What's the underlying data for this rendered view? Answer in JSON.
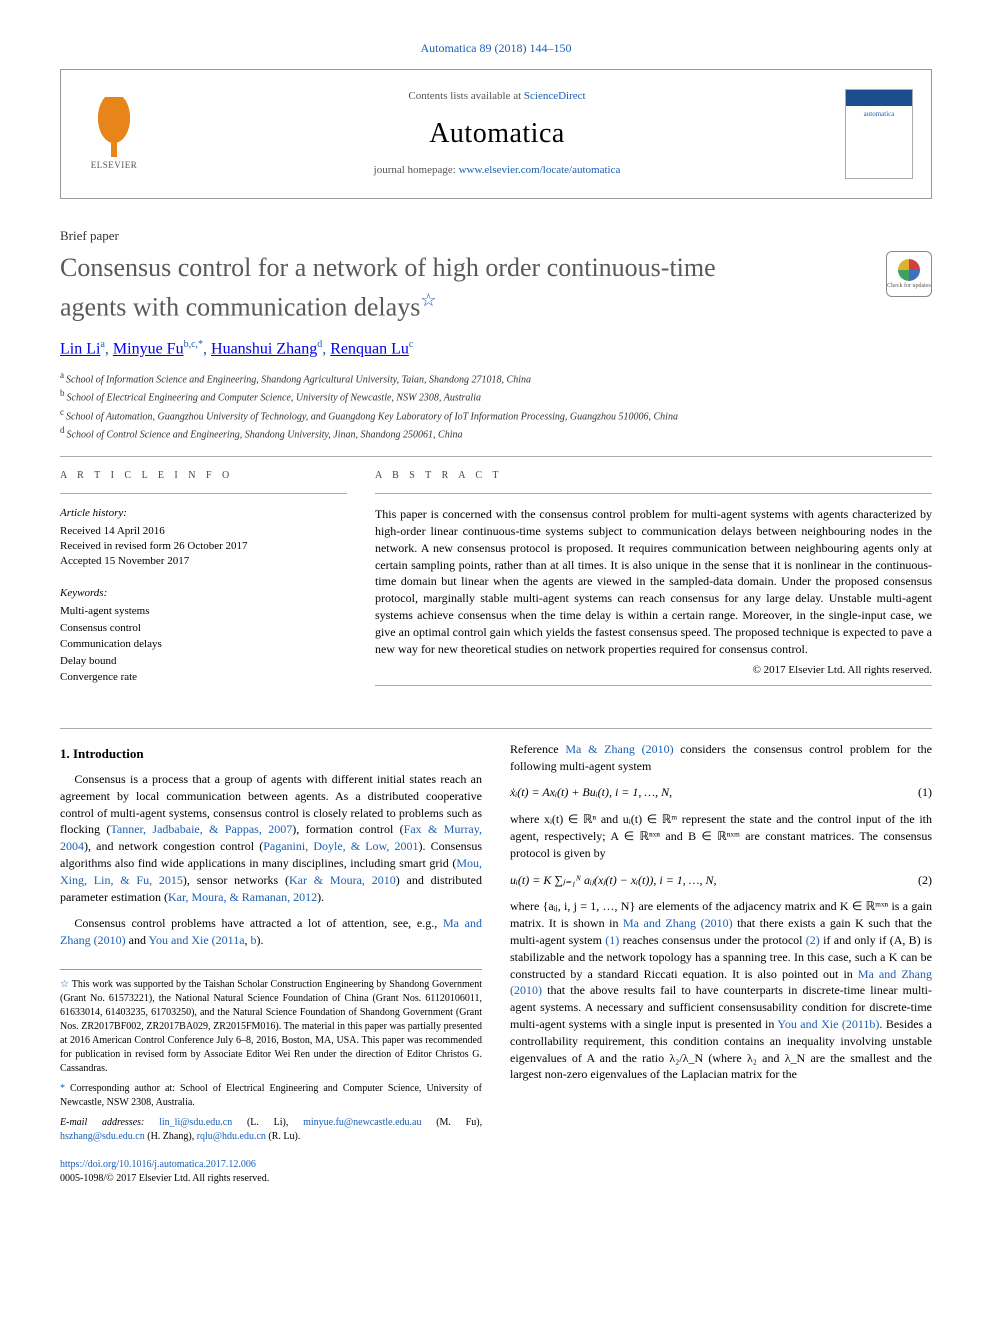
{
  "journal_ref": {
    "text": "Automatica 89 (2018) 144–150",
    "color": "#1a5fb4"
  },
  "header": {
    "contents_prefix": "Contents lists available at ",
    "contents_link": "ScienceDirect",
    "journal_name": "Automatica",
    "homepage_prefix": "journal homepage: ",
    "homepage_link": "www.elsevier.com/locate/automatica",
    "elsevier_label": "ELSEVIER",
    "cover_label": "automatica",
    "check_updates_label": "Check for updates"
  },
  "paper_type": "Brief paper",
  "title_line1": "Consensus control for a network of high order continuous-time",
  "title_line2": "agents with communication delays",
  "title_footnote_sym": "☆",
  "authors": [
    {
      "name": "Lin Li",
      "aff": "a"
    },
    {
      "name": "Minyue Fu",
      "aff": "b,c,*"
    },
    {
      "name": "Huanshui Zhang",
      "aff": "d"
    },
    {
      "name": "Renquan Lu",
      "aff": "c"
    }
  ],
  "affiliations": [
    {
      "lbl": "a",
      "text": "School of Information Science and Engineering, Shandong Agricultural University, Taian, Shandong 271018, China"
    },
    {
      "lbl": "b",
      "text": "School of Electrical Engineering and Computer Science, University of Newcastle, NSW 2308, Australia"
    },
    {
      "lbl": "c",
      "text": "School of Automation, Guangzhou University of Technology, and Guangdong Key Laboratory of IoT Information Processing, Guangzhou 510006, China"
    },
    {
      "lbl": "d",
      "text": "School of Control Science and Engineering, Shandong University, Jinan, Shandong 250061, China"
    }
  ],
  "info_label": "A R T I C L E   I N F O",
  "abstract_label": "A B S T R A C T",
  "history": {
    "header": "Article history:",
    "received": "Received 14 April 2016",
    "revised": "Received in revised form 26 October 2017",
    "accepted": "Accepted 15 November 2017"
  },
  "keywords": {
    "header": "Keywords:",
    "items": [
      "Multi-agent systems",
      "Consensus control",
      "Communication delays",
      "Delay bound",
      "Convergence rate"
    ]
  },
  "abstract_text": "This paper is concerned with the consensus control problem for multi-agent systems with agents characterized by high-order linear continuous-time systems subject to communication delays between neighbouring nodes in the network. A new consensus protocol is proposed. It requires communication between neighbouring agents only at certain sampling points, rather than at all times. It is also unique in the sense that it is nonlinear in the continuous-time domain but linear when the agents are viewed in the sampled-data domain. Under the proposed consensus protocol, marginally stable multi-agent systems can reach consensus for any large delay. Unstable multi-agent systems achieve consensus when the time delay is within a certain range. Moreover, in the single-input case, we give an optimal control gain which yields the fastest consensus speed. The proposed technique is expected to pave a new way for new theoretical studies on network properties required for consensus control.",
  "copyright": "© 2017 Elsevier Ltd. All rights reserved.",
  "section1_heading": "1. Introduction",
  "para1": "Consensus is a process that a group of agents with different initial states reach an agreement by local communication between agents. As a distributed cooperative control of multi-agent systems, consensus control is closely related to problems such as flocking  (",
  "cite_tanner": "Tanner, Jadbabaie, & Pappas, 2007",
  "para1b": "), formation control  (",
  "cite_fax": "Fax & Murray, 2004",
  "para1c": "), and network congestion control  (",
  "cite_paganini": "Paganini, Doyle, & Low, 2001",
  "para1d": "). Consensus algorithms also find wide applications in many disciplines, including smart grid  (",
  "cite_mou": "Mou, Xing, Lin, & Fu, 2015",
  "para1e": "), sensor networks  (",
  "cite_kar1": "Kar & Moura, 2010",
  "para1f": ") and distributed parameter estimation  (",
  "cite_kar2": "Kar, Moura, & Ramanan, 2012",
  "para1g": ").",
  "para2a": "Consensus control problems have attracted a lot of attention, see, e.g.,  ",
  "cite_ma1": "Ma and Zhang (2010)",
  "para2b": " and ",
  "cite_you1": "You and Xie (2011a",
  "para2c": ", ",
  "cite_you1b": "b",
  "para2d": ").",
  "col2_para1a": "Reference  ",
  "cite_ma2": "Ma & Zhang (2010)",
  "col2_para1b": " considers the consensus control problem for the following multi-agent system",
  "eq1": "ẋᵢ(t) = Axᵢ(t) + Buᵢ(t),    i = 1, …, N,",
  "eq1_num": "(1)",
  "col2_para2": "where xᵢ(t) ∈ ℝⁿ and uᵢ(t) ∈ ℝᵐ represent the state and the control input of the ith agent, respectively; A ∈ ℝⁿˣⁿ and B ∈ ℝⁿˣᵐ are constant matrices. The consensus protocol is given by",
  "eq2": "uᵢ(t) = K ∑ⱼ₌₁ᴺ aᵢⱼ(xⱼ(t) − xᵢ(t)),  i = 1, …, N,",
  "eq2_num": "(2)",
  "col2_para3a": "where {aᵢⱼ, i, j = 1, …, N} are elements of the adjacency matrix and K ∈ ℝᵐˣⁿ is a gain matrix. It is shown in ",
  "cite_ma3": "Ma and Zhang (2010)",
  "col2_para3b": " that there exists a gain K such that the multi-agent system ",
  "eqref1": "(1)",
  "col2_para3c": " reaches consensus under the protocol ",
  "eqref2": "(2)",
  "col2_para3d": " if and only if (A, B) is stabilizable and the network topology has a spanning tree. In this case, such a K can be constructed by a standard Riccati equation. It is also pointed out in  ",
  "cite_ma4": "Ma and Zhang (2010)",
  "col2_para3e": " that the above results fail to have counterparts in discrete-time linear multi-agent systems. A necessary and sufficient consensusability condition for discrete-time multi-agent systems with a single input is presented in  ",
  "cite_you2": "You and Xie (2011b)",
  "col2_para3f": ". Besides a controllability requirement, this condition contains an inequality involving unstable eigenvalues of A and the ratio λ₂/λ_N (where λ₂ and λ_N are the smallest and the largest non-zero eigenvalues of the Laplacian matrix for the",
  "footnotes": {
    "f1_sym": "☆",
    "f1_text": "This work was supported by the Taishan Scholar Construction Engineering by Shandong Government (Grant No. 61573221), the National Natural Science Foundation of China (Grant Nos. 61120106011, 61633014, 61403235, 61703250), and the Natural Science Foundation of Shandong Government (Grant Nos. ZR2017BF002, ZR2017BA029, ZR2015FM016). The material in this paper was partially presented at 2016 American Control Conference July 6–8, 2016, Boston, MA, USA. This paper was recommended for publication in revised form by Associate Editor Wei Ren under the direction of Editor Christos G. Cassandras.",
    "f2_sym": "*",
    "f2_text": "Corresponding author at: School of Electrical Engineering and Computer Science, University of Newcastle, NSW 2308, Australia.",
    "emails_label": "E-mail addresses:",
    "emails": [
      {
        "addr": "lin_li@sdu.edu.cn",
        "who": "(L. Li)"
      },
      {
        "addr": "minyue.fu@newcastle.edu.au",
        "who": "(M. Fu)"
      },
      {
        "addr": "hszhang@sdu.edu.cn",
        "who": "(H. Zhang)"
      },
      {
        "addr": "rqlu@hdu.edu.cn",
        "who": "(R. Lu)"
      }
    ]
  },
  "doi": {
    "link": "https://doi.org/10.1016/j.automatica.2017.12.006",
    "issn": "0005-1098/© 2017 Elsevier Ltd. All rights reserved."
  },
  "colors": {
    "link": "#1a5fb4",
    "title_gray": "#5a5a5a",
    "elsevier_orange": "#e8851a",
    "border": "#999999"
  }
}
